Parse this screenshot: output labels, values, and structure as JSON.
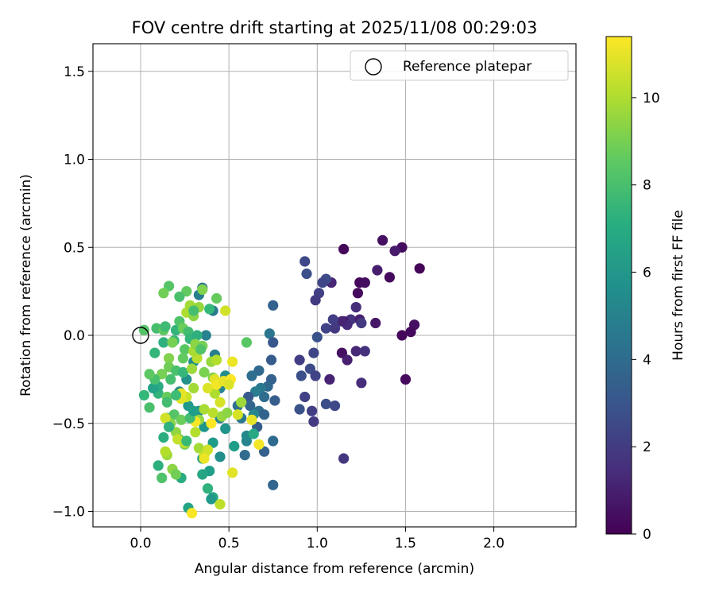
{
  "chart_data": {
    "type": "scatter",
    "title": "FOV centre drift starting at 2025/11/08 00:29:03",
    "xlabel": "Angular distance from reference (arcmin)",
    "ylabel": "Rotation from reference (arcmin)",
    "xlim": [
      -0.27,
      2.46
    ],
    "ylim": [
      -1.1,
      1.65
    ],
    "xticks": [
      0.0,
      0.5,
      1.0,
      1.5,
      2.0
    ],
    "xtick_labels": [
      "0.0",
      "0.5",
      "1.0",
      "1.5",
      "2.0"
    ],
    "yticks": [
      -1.0,
      -0.5,
      0.0,
      0.5,
      1.0,
      1.5
    ],
    "ytick_labels": [
      "−1.0",
      "−0.5",
      "0.0",
      "0.5",
      "1.0",
      "1.5"
    ],
    "grid": true,
    "legend": {
      "position": "top-right",
      "entries": [
        {
          "label": "Reference platepar",
          "marker": "open-circle"
        }
      ]
    },
    "reference_point": {
      "x": 0.0,
      "y": 0.0,
      "label": "Reference platepar"
    },
    "colorbar": {
      "label": "Hours from first FF file",
      "min": 0,
      "max": 11.4,
      "ticks": [
        0,
        2,
        4,
        6,
        8,
        10
      ],
      "tick_labels": [
        "0",
        "2",
        "4",
        "6",
        "8",
        "10"
      ],
      "colormap": "viridis"
    },
    "points": [
      {
        "x": 1.15,
        "y": 0.49,
        "c": 0.2
      },
      {
        "x": 1.37,
        "y": 0.54,
        "c": 0.5
      },
      {
        "x": 1.48,
        "y": 0.5,
        "c": 0.4
      },
      {
        "x": 1.58,
        "y": 0.38,
        "c": 0.1
      },
      {
        "x": 1.44,
        "y": 0.48,
        "c": 0.8
      },
      {
        "x": 1.34,
        "y": 0.37,
        "c": 0.9
      },
      {
        "x": 1.41,
        "y": 0.33,
        "c": 0.3
      },
      {
        "x": 1.24,
        "y": 0.3,
        "c": 0.2
      },
      {
        "x": 1.27,
        "y": 0.3,
        "c": 0.4
      },
      {
        "x": 1.23,
        "y": 0.24,
        "c": 0.3
      },
      {
        "x": 1.08,
        "y": 0.3,
        "c": 1.2
      },
      {
        "x": 1.22,
        "y": 0.16,
        "c": 1.5
      },
      {
        "x": 1.19,
        "y": 0.09,
        "c": 1.7
      },
      {
        "x": 1.15,
        "y": 0.08,
        "c": 0.6
      },
      {
        "x": 1.24,
        "y": 0.09,
        "c": 1.0
      },
      {
        "x": 1.25,
        "y": 0.07,
        "c": 1.9
      },
      {
        "x": 1.33,
        "y": 0.07,
        "c": 0.7
      },
      {
        "x": 1.17,
        "y": 0.06,
        "c": 1.4
      },
      {
        "x": 1.14,
        "y": 0.08,
        "c": 1.1
      },
      {
        "x": 1.55,
        "y": 0.06,
        "c": 0.5
      },
      {
        "x": 1.48,
        "y": 0.0,
        "c": 0.2
      },
      {
        "x": 1.53,
        "y": 0.02,
        "c": 0.3
      },
      {
        "x": 1.14,
        "y": -0.1,
        "c": 0.5
      },
      {
        "x": 1.17,
        "y": -0.14,
        "c": 1.0
      },
      {
        "x": 1.22,
        "y": -0.09,
        "c": 1.3
      },
      {
        "x": 1.27,
        "y": -0.09,
        "c": 1.6
      },
      {
        "x": 1.07,
        "y": -0.25,
        "c": 1.1
      },
      {
        "x": 1.25,
        "y": -0.27,
        "c": 1.5
      },
      {
        "x": 1.5,
        "y": -0.25,
        "c": 0.3
      },
      {
        "x": 1.15,
        "y": -0.7,
        "c": 1.8
      },
      {
        "x": 0.93,
        "y": 0.42,
        "c": 2.5
      },
      {
        "x": 0.94,
        "y": 0.35,
        "c": 2.8
      },
      {
        "x": 1.05,
        "y": 0.32,
        "c": 2.6
      },
      {
        "x": 1.01,
        "y": 0.24,
        "c": 2.2
      },
      {
        "x": 0.99,
        "y": 0.2,
        "c": 2.0
      },
      {
        "x": 1.03,
        "y": 0.3,
        "c": 2.4
      },
      {
        "x": 1.05,
        "y": 0.04,
        "c": 2.3
      },
      {
        "x": 1.09,
        "y": 0.09,
        "c": 2.1
      },
      {
        "x": 1.0,
        "y": -0.01,
        "c": 2.9
      },
      {
        "x": 1.1,
        "y": 0.04,
        "c": 1.9
      },
      {
        "x": 0.9,
        "y": -0.14,
        "c": 2.1
      },
      {
        "x": 0.96,
        "y": -0.19,
        "c": 2.6
      },
      {
        "x": 0.98,
        "y": -0.1,
        "c": 2.4
      },
      {
        "x": 0.91,
        "y": -0.23,
        "c": 2.8
      },
      {
        "x": 0.99,
        "y": -0.23,
        "c": 2.3
      },
      {
        "x": 0.93,
        "y": -0.35,
        "c": 2.2
      },
      {
        "x": 0.9,
        "y": -0.42,
        "c": 2.9
      },
      {
        "x": 0.97,
        "y": -0.43,
        "c": 2.1
      },
      {
        "x": 1.05,
        "y": -0.39,
        "c": 2.7
      },
      {
        "x": 1.1,
        "y": -0.4,
        "c": 2.5
      },
      {
        "x": 0.98,
        "y": -0.49,
        "c": 2.0
      },
      {
        "x": 0.75,
        "y": 0.17,
        "c": 3.6
      },
      {
        "x": 0.73,
        "y": 0.01,
        "c": 4.5
      },
      {
        "x": 0.75,
        "y": -0.04,
        "c": 3.1
      },
      {
        "x": 0.74,
        "y": -0.14,
        "c": 3.3
      },
      {
        "x": 0.67,
        "y": -0.2,
        "c": 3.9
      },
      {
        "x": 0.63,
        "y": -0.23,
        "c": 4.1
      },
      {
        "x": 0.74,
        "y": -0.25,
        "c": 3.5
      },
      {
        "x": 0.72,
        "y": -0.29,
        "c": 3.8
      },
      {
        "x": 0.68,
        "y": -0.3,
        "c": 4.6
      },
      {
        "x": 0.65,
        "y": -0.32,
        "c": 4.8
      },
      {
        "x": 0.61,
        "y": -0.35,
        "c": 3.2
      },
      {
        "x": 0.7,
        "y": -0.35,
        "c": 4.0
      },
      {
        "x": 0.76,
        "y": -0.37,
        "c": 3.4
      },
      {
        "x": 0.62,
        "y": -0.4,
        "c": 3.7
      },
      {
        "x": 0.55,
        "y": -0.4,
        "c": 4.3
      },
      {
        "x": 0.67,
        "y": -0.43,
        "c": 4.2
      },
      {
        "x": 0.7,
        "y": -0.45,
        "c": 3.6
      },
      {
        "x": 0.57,
        "y": -0.47,
        "c": 4.7
      },
      {
        "x": 0.66,
        "y": -0.52,
        "c": 3.3
      },
      {
        "x": 0.75,
        "y": -0.6,
        "c": 3.9
      },
      {
        "x": 0.7,
        "y": -0.66,
        "c": 3.5
      },
      {
        "x": 0.75,
        "y": -0.85,
        "c": 3.7
      },
      {
        "x": 0.59,
        "y": -0.68,
        "c": 4.0
      },
      {
        "x": 0.6,
        "y": -0.6,
        "c": 5.1
      },
      {
        "x": 0.6,
        "y": -0.57,
        "c": 5.4
      },
      {
        "x": 0.64,
        "y": -0.45,
        "c": 5.3
      },
      {
        "x": 0.48,
        "y": -0.23,
        "c": 5.5
      },
      {
        "x": 0.45,
        "y": -0.3,
        "c": 5.2
      },
      {
        "x": 0.42,
        "y": -0.11,
        "c": 4.9
      },
      {
        "x": 0.37,
        "y": 0.0,
        "c": 5.0
      },
      {
        "x": 0.33,
        "y": 0.23,
        "c": 4.8
      },
      {
        "x": 0.35,
        "y": 0.27,
        "c": 4.4
      },
      {
        "x": 0.41,
        "y": 0.14,
        "c": 4.6
      },
      {
        "x": 0.3,
        "y": -0.15,
        "c": 5.6
      },
      {
        "x": 0.26,
        "y": -0.25,
        "c": 5.8
      },
      {
        "x": 0.22,
        "y": -0.32,
        "c": 5.5
      },
      {
        "x": 0.27,
        "y": -0.4,
        "c": 6.1
      },
      {
        "x": 0.33,
        "y": -0.43,
        "c": 5.7
      },
      {
        "x": 0.36,
        "y": -0.52,
        "c": 6.0
      },
      {
        "x": 0.45,
        "y": -0.47,
        "c": 5.2
      },
      {
        "x": 0.48,
        "y": -0.53,
        "c": 5.9
      },
      {
        "x": 0.53,
        "y": -0.63,
        "c": 6.3
      },
      {
        "x": 0.41,
        "y": -0.61,
        "c": 6.2
      },
      {
        "x": 0.35,
        "y": -0.7,
        "c": 6.5
      },
      {
        "x": 0.45,
        "y": -0.69,
        "c": 5.6
      },
      {
        "x": 0.39,
        "y": -0.77,
        "c": 6.4
      },
      {
        "x": 0.35,
        "y": -0.79,
        "c": 6.7
      },
      {
        "x": 0.23,
        "y": -0.81,
        "c": 7.0
      },
      {
        "x": 0.38,
        "y": -0.87,
        "c": 7.3
      },
      {
        "x": 0.41,
        "y": -0.92,
        "c": 6.8
      },
      {
        "x": 0.27,
        "y": -0.98,
        "c": 6.6
      },
      {
        "x": 0.4,
        "y": -0.93,
        "c": 6.1
      },
      {
        "x": 0.1,
        "y": -0.74,
        "c": 7.2
      },
      {
        "x": 0.13,
        "y": -0.58,
        "c": 7.1
      },
      {
        "x": 0.15,
        "y": -0.47,
        "c": 6.8
      },
      {
        "x": 0.1,
        "y": -0.33,
        "c": 7.4
      },
      {
        "x": 0.1,
        "y": -0.29,
        "c": 7.0
      },
      {
        "x": 0.07,
        "y": -0.3,
        "c": 6.6
      },
      {
        "x": 0.02,
        "y": -0.34,
        "c": 7.6
      },
      {
        "x": 0.05,
        "y": -0.41,
        "c": 8.1
      },
      {
        "x": 0.08,
        "y": -0.1,
        "c": 7.5
      },
      {
        "x": 0.13,
        "y": -0.04,
        "c": 7.2
      },
      {
        "x": 0.02,
        "y": 0.03,
        "c": 8.3
      },
      {
        "x": 0.09,
        "y": 0.04,
        "c": 8.0
      },
      {
        "x": 0.13,
        "y": 0.03,
        "c": 8.5
      },
      {
        "x": 0.14,
        "y": 0.05,
        "c": 7.8
      },
      {
        "x": 0.2,
        "y": 0.03,
        "c": 7.4
      },
      {
        "x": 0.22,
        "y": 0.08,
        "c": 8.2
      },
      {
        "x": 0.19,
        "y": -0.03,
        "c": 7.7
      },
      {
        "x": 0.24,
        "y": 0.04,
        "c": 8.8
      },
      {
        "x": 0.27,
        "y": 0.02,
        "c": 7.9
      },
      {
        "x": 0.28,
        "y": -0.02,
        "c": 7.5
      },
      {
        "x": 0.32,
        "y": 0.0,
        "c": 7.2
      },
      {
        "x": 0.25,
        "y": -0.08,
        "c": 8.4
      },
      {
        "x": 0.24,
        "y": -0.13,
        "c": 8.6
      },
      {
        "x": 0.16,
        "y": -0.13,
        "c": 9.2
      },
      {
        "x": 0.16,
        "y": -0.18,
        "c": 8.9
      },
      {
        "x": 0.2,
        "y": -0.2,
        "c": 8.1
      },
      {
        "x": 0.24,
        "y": -0.21,
        "c": 7.6
      },
      {
        "x": 0.17,
        "y": -0.25,
        "c": 8.0
      },
      {
        "x": 0.12,
        "y": -0.22,
        "c": 9.0
      },
      {
        "x": 0.15,
        "y": -0.35,
        "c": 8.7
      },
      {
        "x": 0.15,
        "y": -0.38,
        "c": 7.9
      },
      {
        "x": 0.19,
        "y": -0.45,
        "c": 8.3
      },
      {
        "x": 0.23,
        "y": -0.48,
        "c": 8.8
      },
      {
        "x": 0.17,
        "y": -0.5,
        "c": 9.3
      },
      {
        "x": 0.2,
        "y": -0.55,
        "c": 9.5
      },
      {
        "x": 0.22,
        "y": -0.59,
        "c": 8.4
      },
      {
        "x": 0.25,
        "y": -0.62,
        "c": 9.1
      },
      {
        "x": 0.15,
        "y": -0.68,
        "c": 9.7
      },
      {
        "x": 0.18,
        "y": -0.76,
        "c": 9.4
      },
      {
        "x": 0.2,
        "y": -0.79,
        "c": 8.9
      },
      {
        "x": 0.12,
        "y": -0.81,
        "c": 8.2
      },
      {
        "x": 0.25,
        "y": -0.61,
        "c": 10.4
      },
      {
        "x": 0.31,
        "y": -0.55,
        "c": 10.1
      },
      {
        "x": 0.33,
        "y": -0.64,
        "c": 9.8
      },
      {
        "x": 0.36,
        "y": -0.68,
        "c": 10.3
      },
      {
        "x": 0.38,
        "y": -0.65,
        "c": 10.6
      },
      {
        "x": 0.33,
        "y": -0.48,
        "c": 9.5
      },
      {
        "x": 0.36,
        "y": -0.42,
        "c": 9.9
      },
      {
        "x": 0.41,
        "y": -0.44,
        "c": 10.2
      },
      {
        "x": 0.46,
        "y": -0.46,
        "c": 9.6
      },
      {
        "x": 0.49,
        "y": -0.44,
        "c": 9.4
      },
      {
        "x": 0.45,
        "y": -0.38,
        "c": 10.7
      },
      {
        "x": 0.42,
        "y": -0.33,
        "c": 10.0
      },
      {
        "x": 0.3,
        "y": -0.3,
        "c": 9.8
      },
      {
        "x": 0.26,
        "y": -0.35,
        "c": 10.5
      },
      {
        "x": 0.23,
        "y": -0.36,
        "c": 10.9
      },
      {
        "x": 0.38,
        "y": -0.3,
        "c": 10.8
      },
      {
        "x": 0.41,
        "y": -0.24,
        "c": 9.3
      },
      {
        "x": 0.36,
        "y": -0.21,
        "c": 9.1
      },
      {
        "x": 0.29,
        "y": -0.19,
        "c": 9.7
      },
      {
        "x": 0.32,
        "y": -0.13,
        "c": 10.2
      },
      {
        "x": 0.3,
        "y": -0.09,
        "c": 9.9
      },
      {
        "x": 0.31,
        "y": -0.05,
        "c": 9.4
      },
      {
        "x": 0.35,
        "y": -0.06,
        "c": 9.0
      },
      {
        "x": 0.4,
        "y": -0.15,
        "c": 9.6
      },
      {
        "x": 0.43,
        "y": -0.14,
        "c": 10.1
      },
      {
        "x": 0.42,
        "y": -0.25,
        "c": 10.9
      },
      {
        "x": 0.43,
        "y": -0.28,
        "c": 11.2
      },
      {
        "x": 0.47,
        "y": -0.26,
        "c": 11.0
      },
      {
        "x": 0.51,
        "y": -0.25,
        "c": 11.4
      },
      {
        "x": 0.52,
        "y": -0.15,
        "c": 11.1
      },
      {
        "x": 0.55,
        "y": -0.45,
        "c": 10.7
      },
      {
        "x": 0.57,
        "y": -0.38,
        "c": 9.7
      },
      {
        "x": 0.63,
        "y": -0.48,
        "c": 11.0
      },
      {
        "x": 0.67,
        "y": -0.62,
        "c": 11.2
      },
      {
        "x": 0.52,
        "y": -0.78,
        "c": 10.9
      },
      {
        "x": 0.45,
        "y": -0.96,
        "c": 10.3
      },
      {
        "x": 0.29,
        "y": -1.01,
        "c": 11.3
      },
      {
        "x": 0.36,
        "y": -0.7,
        "c": 11.1
      },
      {
        "x": 0.21,
        "y": -0.59,
        "c": 10.4
      },
      {
        "x": 0.14,
        "y": -0.66,
        "c": 10.1
      },
      {
        "x": 0.14,
        "y": -0.47,
        "c": 10.6
      },
      {
        "x": 0.23,
        "y": -0.33,
        "c": 11.0
      },
      {
        "x": 0.31,
        "y": -0.49,
        "c": 11.3
      },
      {
        "x": 0.4,
        "y": -0.5,
        "c": 11.4
      },
      {
        "x": 0.5,
        "y": -0.28,
        "c": 10.8
      },
      {
        "x": 0.48,
        "y": 0.14,
        "c": 10.6
      },
      {
        "x": 0.26,
        "y": 0.13,
        "c": 10.0
      },
      {
        "x": 0.29,
        "y": 0.16,
        "c": 10.3
      },
      {
        "x": 0.3,
        "y": 0.11,
        "c": 9.4
      },
      {
        "x": 0.28,
        "y": 0.17,
        "c": 9.8
      },
      {
        "x": 0.35,
        "y": 0.26,
        "c": 9.2
      },
      {
        "x": 0.26,
        "y": 0.25,
        "c": 8.6
      },
      {
        "x": 0.16,
        "y": 0.28,
        "c": 8.3
      },
      {
        "x": 0.13,
        "y": 0.24,
        "c": 8.9
      },
      {
        "x": 0.22,
        "y": 0.22,
        "c": 8.1
      },
      {
        "x": 0.43,
        "y": 0.21,
        "c": 8.7
      },
      {
        "x": 0.33,
        "y": 0.16,
        "c": 9.6
      },
      {
        "x": 0.3,
        "y": 0.14,
        "c": 8.0
      },
      {
        "x": 0.39,
        "y": 0.15,
        "c": 7.6
      },
      {
        "x": 0.6,
        "y": -0.04,
        "c": 8.4
      },
      {
        "x": 0.64,
        "y": -0.56,
        "c": 6.9
      },
      {
        "x": 0.08,
        "y": -0.25,
        "c": 8.1
      },
      {
        "x": 0.05,
        "y": -0.22,
        "c": 8.5
      },
      {
        "x": 0.16,
        "y": -0.52,
        "c": 7.3
      },
      {
        "x": 0.28,
        "y": -0.47,
        "c": 7.9
      },
      {
        "x": 0.18,
        "y": -0.04,
        "c": 9.0
      },
      {
        "x": 0.34,
        "y": -0.08,
        "c": 8.2
      },
      {
        "x": 0.26,
        "y": -0.6,
        "c": 7.7
      },
      {
        "x": 0.3,
        "y": -0.43,
        "c": 6.4
      },
      {
        "x": 0.2,
        "y": -0.34,
        "c": 7.8
      }
    ]
  }
}
